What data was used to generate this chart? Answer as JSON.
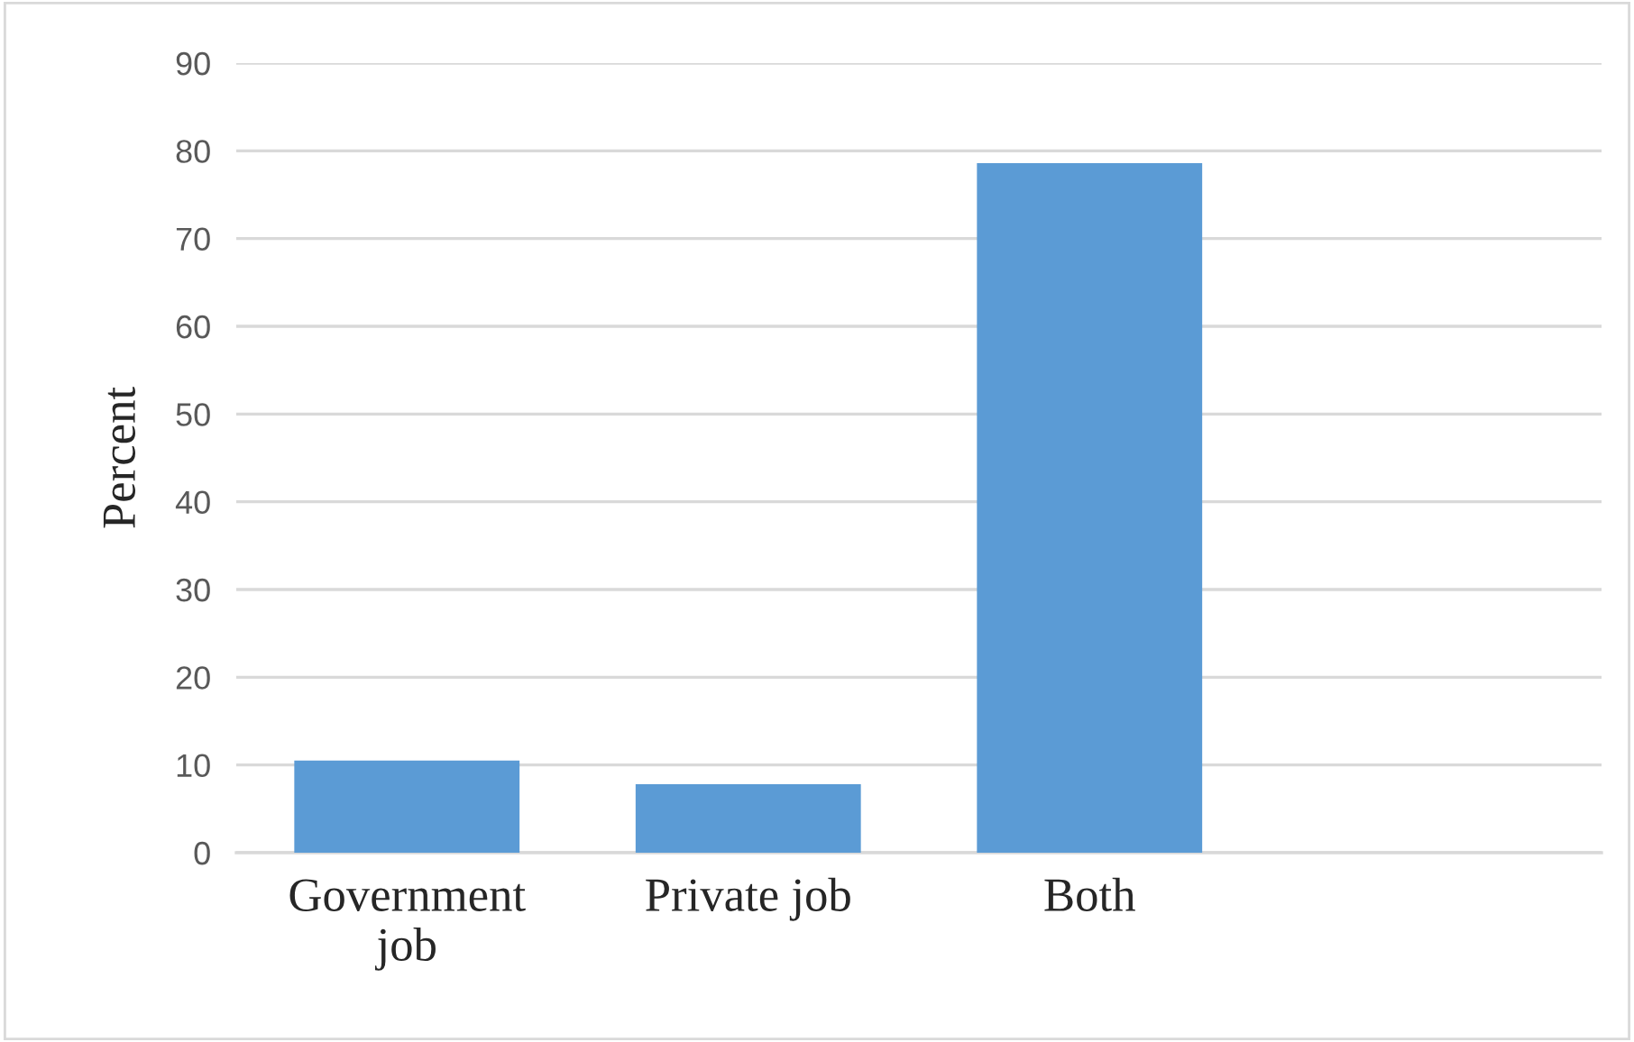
{
  "chart_data": {
    "type": "bar",
    "ylabel": "Percent",
    "categories": [
      "Government\njob",
      "Private job",
      "Both",
      null
    ],
    "values": [
      10.5,
      7.8,
      78.6,
      null
    ],
    "color": "#5b9bd5",
    "ylim": [
      0,
      90
    ],
    "yticks": [
      0,
      10,
      20,
      30,
      40,
      50,
      60,
      70,
      80,
      90
    ],
    "grid": "y"
  }
}
